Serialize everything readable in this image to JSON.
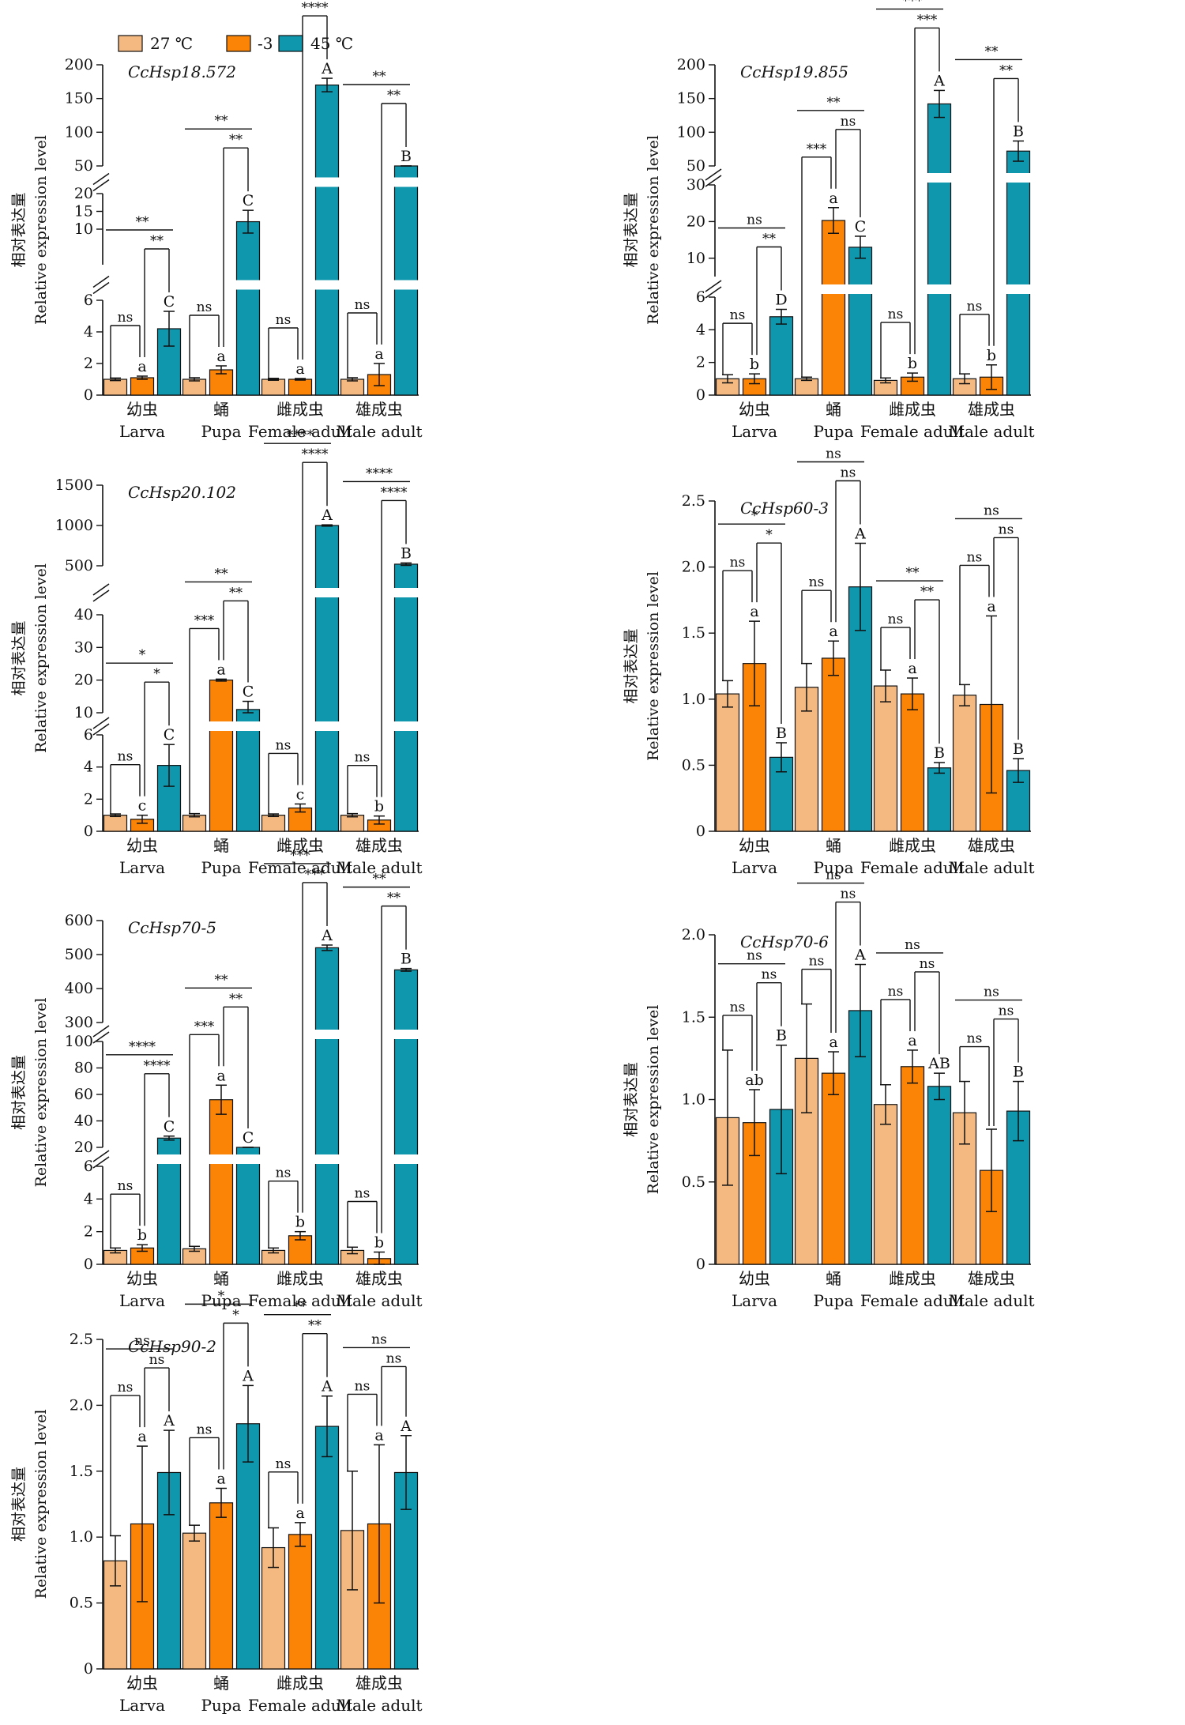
{
  "legend": [
    {
      "label": "27 ℃",
      "color": "#f4b981"
    },
    {
      "label": "-3 ℃",
      "color": "#fb8407"
    },
    {
      "label": "45 ℃",
      "color": "#0f97ad"
    }
  ],
  "ylabel_cn": "相对表达量",
  "ylabel_en": "Relative expression level",
  "categories_cn": [
    "幼虫",
    "蛹",
    "雌成虫",
    "雄成虫"
  ],
  "categories_en": [
    "Larva",
    "Pupa",
    "Female adult",
    "Male adult"
  ],
  "chart_data": [
    {
      "type": "bar",
      "title": "CcHsp18.572",
      "ylabel": "相对表达量 Relative expression level",
      "categories": [
        "幼虫 Larva",
        "蛹 Pupa",
        "雌成虫 Female adult",
        "雄成虫 Male adult"
      ],
      "y_segments": [
        {
          "range": [
            0,
            6
          ],
          "ticks": [
            "0",
            "2",
            "4",
            "6"
          ]
        },
        {
          "range": [
            0,
            20
          ],
          "ticks": [
            "10",
            "15",
            "20"
          ]
        },
        {
          "range": [
            50,
            200
          ],
          "ticks": [
            "50",
            "100",
            "150",
            "200"
          ]
        }
      ],
      "series": [
        {
          "name": "27 ℃",
          "values": [
            1.0,
            1.0,
            1.0,
            1.0
          ],
          "errors": [
            0.08,
            0.1,
            0.06,
            0.1
          ]
        },
        {
          "name": "-3 ℃",
          "values": [
            1.1,
            1.6,
            1.0,
            1.3
          ],
          "errors": [
            0.1,
            0.25,
            0.05,
            0.7
          ]
        },
        {
          "name": "45 ℃",
          "values": [
            4.2,
            12.1,
            170.0,
            38.0
          ],
          "errors": [
            1.1,
            3.2,
            10.0,
            5.0
          ]
        }
      ],
      "letters": [
        [
          "",
          "a",
          "C"
        ],
        [
          "",
          "a",
          "C"
        ],
        [
          "",
          "a",
          "A"
        ],
        [
          "",
          "a",
          "B"
        ]
      ],
      "significance": [
        {
          "pair": "27-(-3)",
          "marks": [
            "ns",
            "ns",
            "ns",
            "ns"
          ]
        },
        {
          "pair": "(-3)-45",
          "marks": [
            "**",
            "**",
            "****",
            "**"
          ]
        },
        {
          "pair": "27-45",
          "marks": [
            "**",
            "**",
            "****",
            "**"
          ]
        }
      ]
    },
    {
      "type": "bar",
      "title": "CcHsp19.855",
      "ylabel": "相对表达量 Relative expression level",
      "categories": [
        "幼虫 Larva",
        "蛹 Pupa",
        "雌成虫 Female adult",
        "雄成虫 Male adult"
      ],
      "y_segments": [
        {
          "range": [
            0,
            6
          ],
          "ticks": [
            "0",
            "2",
            "4",
            "6"
          ]
        },
        {
          "range": [
            5,
            30
          ],
          "ticks": [
            "10",
            "20",
            "30"
          ]
        },
        {
          "range": [
            50,
            200
          ],
          "ticks": [
            "50",
            "100",
            "150",
            "200"
          ]
        }
      ],
      "series": [
        {
          "name": "27 ℃",
          "values": [
            1.0,
            1.0,
            0.9,
            1.0
          ],
          "errors": [
            0.25,
            0.1,
            0.15,
            0.3
          ]
        },
        {
          "name": "-3 ℃",
          "values": [
            1.0,
            20.3,
            1.1,
            1.1
          ],
          "errors": [
            0.3,
            3.5,
            0.25,
            0.75
          ]
        },
        {
          "name": "45 ℃",
          "values": [
            4.8,
            13.0,
            142.0,
            72.0
          ],
          "errors": [
            0.45,
            3.0,
            20.0,
            15.0
          ]
        }
      ],
      "letters": [
        [
          "",
          "b",
          "D"
        ],
        [
          "",
          "a",
          "C"
        ],
        [
          "",
          "b",
          "A"
        ],
        [
          "",
          "b",
          "B"
        ]
      ],
      "significance": [
        {
          "pair": "27-(-3)",
          "marks": [
            "ns",
            "***",
            "ns",
            "ns"
          ]
        },
        {
          "pair": "(-3)-45",
          "marks": [
            "**",
            "ns",
            "***",
            "**"
          ]
        },
        {
          "pair": "27-45",
          "marks": [
            "ns",
            "**",
            "***",
            "**"
          ]
        }
      ]
    },
    {
      "type": "bar",
      "title": "CcHsp20.102",
      "ylabel": "相对表达量 Relative expression level",
      "categories": [
        "幼虫 Larva",
        "蛹 Pupa",
        "雌成虫 Female adult",
        "雄成虫 Male adult"
      ],
      "y_segments": [
        {
          "range": [
            0,
            6
          ],
          "ticks": [
            "0",
            "2",
            "4",
            "6"
          ]
        },
        {
          "range": [
            10,
            40
          ],
          "ticks": [
            "10",
            "20",
            "30",
            "40"
          ]
        },
        {
          "range": [
            500,
            1500
          ],
          "ticks": [
            "500",
            "1000",
            "1500"
          ]
        }
      ],
      "series": [
        {
          "name": "27 ℃",
          "values": [
            1.0,
            1.0,
            1.0,
            1.0
          ],
          "errors": [
            0.08,
            0.1,
            0.08,
            0.1
          ]
        },
        {
          "name": "-3 ℃",
          "values": [
            0.75,
            20.0,
            1.45,
            0.7
          ],
          "errors": [
            0.25,
            0.3,
            0.25,
            0.25
          ]
        },
        {
          "name": "45 ℃",
          "values": [
            4.1,
            11.0,
            1000.0,
            520.0
          ],
          "errors": [
            1.3,
            2.5,
            8.0,
            15.0
          ]
        }
      ],
      "letters": [
        [
          "",
          "c",
          "C"
        ],
        [
          "",
          "a",
          "C"
        ],
        [
          "",
          "c",
          "A"
        ],
        [
          "",
          "b",
          "B"
        ]
      ],
      "significance": [
        {
          "pair": "27-(-3)",
          "marks": [
            "ns",
            "***",
            "ns",
            "ns"
          ]
        },
        {
          "pair": "(-3)-45",
          "marks": [
            "*",
            "**",
            "****",
            "****"
          ]
        },
        {
          "pair": "27-45",
          "marks": [
            "*",
            "**",
            "****",
            "****"
          ]
        }
      ]
    },
    {
      "type": "bar",
      "title": "CcHsp60-3",
      "ylabel": "相对表达量 Relative expression level",
      "categories": [
        "幼虫 Larva",
        "蛹 Pupa",
        "雌成虫 Female adult",
        "雄成虫 Male adult"
      ],
      "y_segments": [
        {
          "range": [
            0,
            2.5
          ],
          "ticks": [
            "0",
            "0.5",
            "1.0",
            "1.5",
            "2.0",
            "2.5"
          ]
        }
      ],
      "series": [
        {
          "name": "27 ℃",
          "values": [
            1.04,
            1.09,
            1.1,
            1.03
          ],
          "errors": [
            0.1,
            0.18,
            0.12,
            0.08
          ]
        },
        {
          "name": "-3 ℃",
          "values": [
            1.27,
            1.31,
            1.04,
            0.96
          ],
          "errors": [
            0.32,
            0.13,
            0.12,
            0.67
          ]
        },
        {
          "name": "45 ℃",
          "values": [
            0.56,
            1.85,
            0.48,
            0.46
          ],
          "errors": [
            0.11,
            0.33,
            0.04,
            0.09
          ]
        }
      ],
      "letters": [
        [
          "",
          "a",
          "B"
        ],
        [
          "",
          "a",
          "A"
        ],
        [
          "",
          "a",
          "B"
        ],
        [
          "",
          "a",
          "B"
        ]
      ],
      "significance": [
        {
          "pair": "27-(-3)",
          "marks": [
            "ns",
            "ns",
            "ns",
            "ns"
          ]
        },
        {
          "pair": "(-3)-45",
          "marks": [
            "*",
            "ns",
            "**",
            "ns"
          ]
        },
        {
          "pair": "27-45",
          "marks": [
            "*",
            "ns",
            "**",
            "ns"
          ]
        }
      ]
    },
    {
      "type": "bar",
      "title": "CcHsp70-5",
      "ylabel": "相对表达量 Relative expression level",
      "categories": [
        "幼虫 Larva",
        "蛹 Pupa",
        "雌成虫 Female adult",
        "雄成虫 Male adult"
      ],
      "y_segments": [
        {
          "range": [
            0,
            6
          ],
          "ticks": [
            "0",
            "2",
            "4",
            "6"
          ]
        },
        {
          "range": [
            20,
            100
          ],
          "ticks": [
            "20",
            "40",
            "60",
            "80",
            "100"
          ]
        },
        {
          "range": [
            300,
            600
          ],
          "ticks": [
            "300",
            "400",
            "500",
            "600"
          ]
        }
      ],
      "series": [
        {
          "name": "27 ℃",
          "values": [
            0.85,
            0.95,
            0.85,
            0.85
          ],
          "errors": [
            0.15,
            0.15,
            0.15,
            0.2
          ]
        },
        {
          "name": "-3 ℃",
          "values": [
            1.0,
            56.0,
            1.75,
            0.35
          ],
          "errors": [
            0.2,
            11.0,
            0.25,
            0.4
          ]
        },
        {
          "name": "45 ℃",
          "values": [
            27.0,
            16.0,
            520.0,
            455.0
          ],
          "errors": [
            1.5,
            3.5,
            8.0,
            4.0
          ]
        }
      ],
      "letters": [
        [
          "",
          "b",
          "C"
        ],
        [
          "",
          "a",
          "C"
        ],
        [
          "",
          "b",
          "A"
        ],
        [
          "",
          "b",
          "B"
        ]
      ],
      "significance": [
        {
          "pair": "27-(-3)",
          "marks": [
            "ns",
            "***",
            "ns",
            "ns"
          ]
        },
        {
          "pair": "(-3)-45",
          "marks": [
            "****",
            "**",
            "***",
            "**"
          ]
        },
        {
          "pair": "27-45",
          "marks": [
            "****",
            "**",
            "***",
            "**"
          ]
        }
      ]
    },
    {
      "type": "bar",
      "title": "CcHsp70-6",
      "ylabel": "相对表达量 Relative expression level",
      "categories": [
        "幼虫 Larva",
        "蛹 Pupa",
        "雌成虫 Female adult",
        "雄成虫 Male adult"
      ],
      "y_segments": [
        {
          "range": [
            0,
            2.0
          ],
          "ticks": [
            "0",
            "0.5",
            "1.0",
            "1.5",
            "2.0"
          ]
        }
      ],
      "series": [
        {
          "name": "27 ℃",
          "values": [
            0.89,
            1.25,
            0.97,
            0.92
          ],
          "errors": [
            0.41,
            0.33,
            0.12,
            0.19
          ]
        },
        {
          "name": "-3 ℃",
          "values": [
            0.86,
            1.16,
            1.2,
            0.57
          ],
          "errors": [
            0.2,
            0.13,
            0.1,
            0.25
          ]
        },
        {
          "name": "45 ℃",
          "values": [
            0.94,
            1.54,
            1.08,
            0.93
          ],
          "errors": [
            0.39,
            0.28,
            0.08,
            0.18
          ]
        }
      ],
      "letters": [
        [
          "",
          "ab",
          "B"
        ],
        [
          "",
          "a",
          "A"
        ],
        [
          "",
          "a",
          "AB"
        ],
        [
          "",
          "",
          "B"
        ]
      ],
      "significance": [
        {
          "pair": "27-(-3)",
          "marks": [
            "ns",
            "ns",
            "ns",
            "ns"
          ]
        },
        {
          "pair": "(-3)-45",
          "marks": [
            "ns",
            "ns",
            "ns",
            "ns"
          ]
        },
        {
          "pair": "27-45",
          "marks": [
            "ns",
            "ns",
            "ns",
            "ns"
          ]
        }
      ]
    },
    {
      "type": "bar",
      "title": "CcHsp90-2",
      "ylabel": "相对表达量 Relative expression level",
      "categories": [
        "幼虫 Larva",
        "蛹 Pupa",
        "雌成虫 Female adult",
        "雄成虫 Male adult"
      ],
      "y_segments": [
        {
          "range": [
            0,
            2.5
          ],
          "ticks": [
            "0",
            "0.5",
            "1.0",
            "1.5",
            "2.0",
            "2.5"
          ]
        }
      ],
      "series": [
        {
          "name": "27 ℃",
          "values": [
            0.82,
            1.03,
            0.92,
            1.05
          ],
          "errors": [
            0.19,
            0.06,
            0.15,
            0.45
          ]
        },
        {
          "name": "-3 ℃",
          "values": [
            1.1,
            1.26,
            1.02,
            1.1
          ],
          "errors": [
            0.59,
            0.11,
            0.09,
            0.6
          ]
        },
        {
          "name": "45 ℃",
          "values": [
            1.49,
            1.86,
            1.84,
            1.49
          ],
          "errors": [
            0.32,
            0.29,
            0.23,
            0.28
          ]
        }
      ],
      "letters": [
        [
          "",
          "a",
          "A"
        ],
        [
          "",
          "a",
          "A"
        ],
        [
          "",
          "a",
          "A"
        ],
        [
          "",
          "a",
          "A"
        ]
      ],
      "significance": [
        {
          "pair": "27-(-3)",
          "marks": [
            "ns",
            "ns",
            "ns",
            "ns"
          ]
        },
        {
          "pair": "(-3)-45",
          "marks": [
            "ns",
            "*",
            "**",
            "ns"
          ]
        },
        {
          "pair": "27-45",
          "marks": [
            "ns",
            "*",
            "**",
            "ns"
          ]
        }
      ]
    }
  ]
}
